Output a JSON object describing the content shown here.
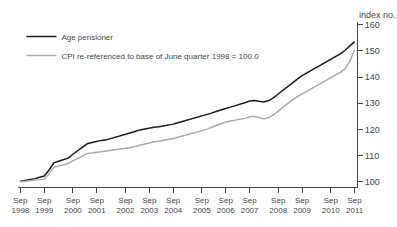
{
  "chart_data": {
    "type": "line",
    "ylabel": "index no.",
    "categories": [
      "Sep\n1998",
      null,
      null,
      null,
      null,
      "Sep\n1999",
      null,
      null,
      null,
      null,
      null,
      "Sep\n2000",
      null,
      null,
      null,
      null,
      "Sep\n2001",
      null,
      null,
      null,
      null,
      null,
      "Sep\n2002",
      null,
      null,
      null,
      null,
      "Sep\n2003",
      null,
      null,
      null,
      null,
      "Sep\n2004",
      null,
      null,
      null,
      null,
      null,
      "Sep\n2005",
      null,
      null,
      null,
      null,
      "Sep\n2006",
      null,
      null,
      null,
      null,
      "Sep\n2007",
      null,
      null,
      null,
      null,
      null,
      "Sep\n2008",
      null,
      null,
      null,
      null,
      "Sep\n2009",
      null,
      null,
      null,
      null,
      null,
      "Sep\n2010",
      null,
      null,
      null,
      null,
      "Sep\n2011"
    ],
    "series": [
      {
        "name": "Age pensioner",
        "color": "#1a1a1a",
        "values": [
          100.2,
          100.5,
          100.8,
          101.2,
          101.7,
          102.2,
          104.5,
          107.2,
          107.8,
          108.4,
          109.0,
          110.5,
          111.8,
          113.2,
          114.5,
          115.0,
          115.5,
          115.8,
          116.0,
          116.5,
          117.0,
          117.5,
          118.0,
          118.5,
          119.2,
          119.8,
          120.2,
          120.5,
          120.8,
          121.0,
          121.3,
          121.5,
          122.0,
          122.5,
          123.0,
          123.5,
          124.0,
          124.5,
          125.0,
          125.5,
          126.2,
          126.8,
          127.5,
          128.0,
          128.5,
          129.0,
          129.5,
          130.2,
          130.8,
          131.0,
          130.7,
          130.5,
          131.0,
          132.0,
          133.5,
          135.0,
          136.5,
          137.8,
          139.2,
          140.5,
          141.5,
          142.5,
          143.5,
          144.5,
          145.5,
          146.5,
          147.5,
          148.8,
          150.2,
          151.8,
          153.5
        ]
      },
      {
        "name": "CPI re-referenced to base of June quarter 1998 = 100.0",
        "color": "#aaaaaa",
        "values": [
          100.0,
          100.2,
          100.4,
          100.6,
          100.8,
          101.0,
          103.0,
          105.5,
          106.0,
          106.5,
          107.0,
          108.0,
          109.0,
          110.0,
          110.8,
          111.0,
          111.3,
          111.5,
          111.8,
          112.0,
          112.3,
          112.5,
          112.8,
          113.0,
          113.5,
          114.0,
          114.5,
          115.0,
          115.3,
          115.5,
          115.8,
          116.0,
          116.5,
          117.0,
          117.5,
          118.0,
          118.5,
          119.0,
          119.5,
          120.0,
          120.8,
          121.5,
          122.2,
          122.8,
          123.2,
          123.5,
          123.8,
          124.2,
          124.8,
          125.0,
          124.5,
          124.0,
          124.5,
          125.5,
          127.0,
          128.5,
          130.0,
          131.3,
          132.5,
          133.5,
          134.5,
          135.5,
          136.5,
          137.5,
          138.5,
          139.5,
          140.5,
          141.8,
          143.2,
          146.0,
          150.5
        ]
      }
    ],
    "ylim": [
      98,
      161
    ],
    "yticks": [
      100,
      110,
      120,
      130,
      140,
      150,
      160
    ],
    "grid": false,
    "legend": "upper left"
  }
}
